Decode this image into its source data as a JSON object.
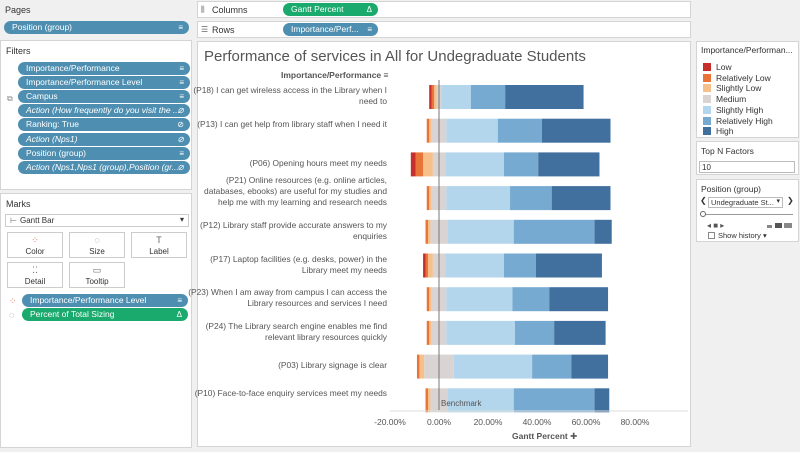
{
  "left": {
    "pages_title": "Pages",
    "pages_pill": "Position (group)",
    "filters_title": "Filters",
    "filters": [
      {
        "label": "Importance/Performance",
        "italic": false,
        "icon": "≡"
      },
      {
        "label": "Importance/Performance Level",
        "italic": false,
        "icon": "≡"
      },
      {
        "label": "Campus",
        "italic": false,
        "icon": "≡"
      },
      {
        "label": "Action (How frequently do you visit the ...",
        "italic": true,
        "icon": "⊘"
      },
      {
        "label": "Ranking: True",
        "italic": false,
        "icon": "⊘"
      },
      {
        "label": "Action (Nps1)",
        "italic": true,
        "icon": "⊘"
      },
      {
        "label": "Position (group)",
        "italic": false,
        "icon": "≡"
      },
      {
        "label": "Action (Nps1,Nps1 (group),Position (gr...",
        "italic": true,
        "icon": "⊘"
      }
    ],
    "marks_title": "Marks",
    "mark_type": "Gantt Bar",
    "mark_buttons": [
      "Color",
      "Size",
      "Label",
      "Detail",
      "Tooltip"
    ],
    "marks_pills": [
      "Importance/Performance Level",
      "Percent of Total Sizing"
    ]
  },
  "shelves": {
    "columns_label": "Columns",
    "columns_pill": "Gantt Percent",
    "rows_label": "Rows",
    "rows_pill": "Importance/Perf..."
  },
  "view": {
    "title": "Performance of services in All for Undegraduate Students",
    "row_header": "Importance/Performance",
    "benchmark_label": "Benchmark",
    "x_axis_title": "Gantt Percent"
  },
  "chart_data": {
    "type": "bar",
    "stacked": "diverging",
    "x_range": [
      -0.22,
      1.0
    ],
    "x_ticks": [
      "-20.00%",
      "0.00%",
      "20.00%",
      "40.00%",
      "60.00%",
      "80.00%"
    ],
    "benchmark_x": 0.0,
    "levels": [
      "Low",
      "Relatively Low",
      "Slightly Low",
      "Medium",
      "Slightly High",
      "Relatively High",
      "High"
    ],
    "colors": [
      "#c7302a",
      "#e8743a",
      "#f7c08b",
      "#d9d4d3",
      "#b4d6ec",
      "#76aad1",
      "#41709e"
    ],
    "categories": [
      {
        "label": "(P18) I can get wireless access in the Library when I need to",
        "values": [
          0.01,
          0.01,
          0.01,
          0.02,
          0.12,
          0.26,
          0.58
        ]
      },
      {
        "label": "(P13) I can get help from library staff when I need it",
        "values": [
          0.0,
          0.01,
          0.01,
          0.06,
          0.21,
          0.39,
          0.67
        ]
      },
      {
        "label": "(P06) Opening hours meet my needs",
        "values": [
          0.02,
          0.03,
          0.04,
          0.05,
          0.24,
          0.38,
          0.63
        ]
      },
      {
        "label": "(P21) Online resources (e.g. online articles, databases, ebooks) are useful for my studies and help me with my learning and research needs",
        "values": [
          0.0,
          0.01,
          0.01,
          0.06,
          0.26,
          0.43,
          0.67
        ]
      },
      {
        "label": "(P12) Library staff provide accurate answers to my enquiries",
        "values": [
          0.0,
          0.01,
          0.01,
          0.07,
          0.27,
          0.6,
          0.67
        ]
      },
      {
        "label": "(P17) Laptop facilities (e.g. desks, power) in the Library meet my needs",
        "values": [
          0.01,
          0.01,
          0.02,
          0.05,
          0.24,
          0.37,
          0.64
        ]
      },
      {
        "label": "(P23) When I am away from campus I can access the Library resources and services I need",
        "values": [
          0.0,
          0.01,
          0.01,
          0.06,
          0.27,
          0.42,
          0.66
        ]
      },
      {
        "label": "(P24) The Library search engine enables me find relevant library resources quickly",
        "values": [
          0.0,
          0.01,
          0.01,
          0.06,
          0.28,
          0.44,
          0.65
        ]
      },
      {
        "label": "(P03) Library signage is clear",
        "values": [
          0.0,
          0.01,
          0.02,
          0.12,
          0.32,
          0.48,
          0.63
        ]
      },
      {
        "label": "(P10) Face-to-face enquiry services meet my needs",
        "values": [
          0.0,
          0.01,
          0.01,
          0.07,
          0.27,
          0.6,
          0.66
        ]
      }
    ]
  },
  "right": {
    "legend_title": "Importance/Performan...",
    "legend_items": [
      "Low",
      "Relatively Low",
      "Slightly Low",
      "Medium",
      "Slightly High",
      "Relatively High",
      "High"
    ],
    "topn_title": "Top N Factors",
    "topn_value": "10",
    "position_title": "Position (group)",
    "position_value": "Undegraduate St...",
    "show_history": "Show history"
  }
}
